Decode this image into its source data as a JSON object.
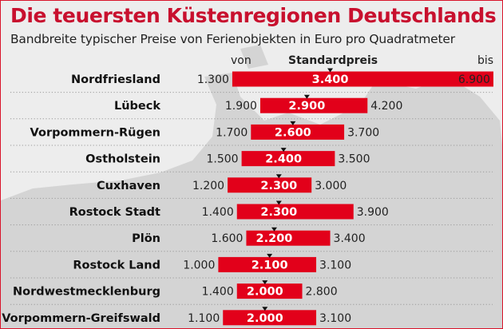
{
  "title": "Die teuersten Küstenregionen Deutschlands",
  "subtitle": "Bandbreite typischer Preise von Ferienobjekten in Euro pro Quadratmeter",
  "header": {
    "from": "von",
    "standard": "Standardpreis",
    "to": "bis"
  },
  "colors": {
    "bar": "#e2001a",
    "title": "#c8102e",
    "background": "#ededed",
    "map": "#d2d2d2"
  },
  "chart_data": {
    "type": "bar",
    "subtype": "range-bar-with-marker",
    "title": "Die teuersten Küstenregionen Deutschlands",
    "subtitle": "Bandbreite typischer Preise von Ferienobjekten in Euro pro Quadratmeter",
    "unit": "Euro pro Quadratmeter",
    "legend": [
      "von",
      "Standardpreis",
      "bis"
    ],
    "grid": false,
    "categories": [
      "Nordfriesland",
      "Lübeck",
      "Vorpommern-Rügen",
      "Ostholstein",
      "Cuxhaven",
      "Rostock Stadt",
      "Plön",
      "Rostock Land",
      "Nordwestmecklenburg",
      "Vorpommern-Greifswald"
    ],
    "series": [
      {
        "name": "von",
        "values": [
          1300,
          1900,
          1700,
          1500,
          1200,
          1400,
          1600,
          1000,
          1400,
          1100
        ],
        "labels": [
          "1.300",
          "1.900",
          "1.700",
          "1.500",
          "1.200",
          "1.400",
          "1.600",
          "1.000",
          "1.400",
          "1.100"
        ]
      },
      {
        "name": "Standardpreis",
        "values": [
          3400,
          2900,
          2600,
          2400,
          2300,
          2300,
          2200,
          2100,
          2000,
          2000
        ],
        "labels": [
          "3.400",
          "2.900",
          "2.600",
          "2.400",
          "2.300",
          "2.300",
          "2.200",
          "2.100",
          "2.000",
          "2.000"
        ]
      },
      {
        "name": "bis",
        "values": [
          6900,
          4200,
          3700,
          3500,
          3000,
          3900,
          3400,
          3100,
          2800,
          3100
        ],
        "labels": [
          "6.900",
          "4.200",
          "3.700",
          "3.500",
          "3.000",
          "3.900",
          "3.400",
          "3.100",
          "2.800",
          "3.100"
        ]
      }
    ]
  }
}
